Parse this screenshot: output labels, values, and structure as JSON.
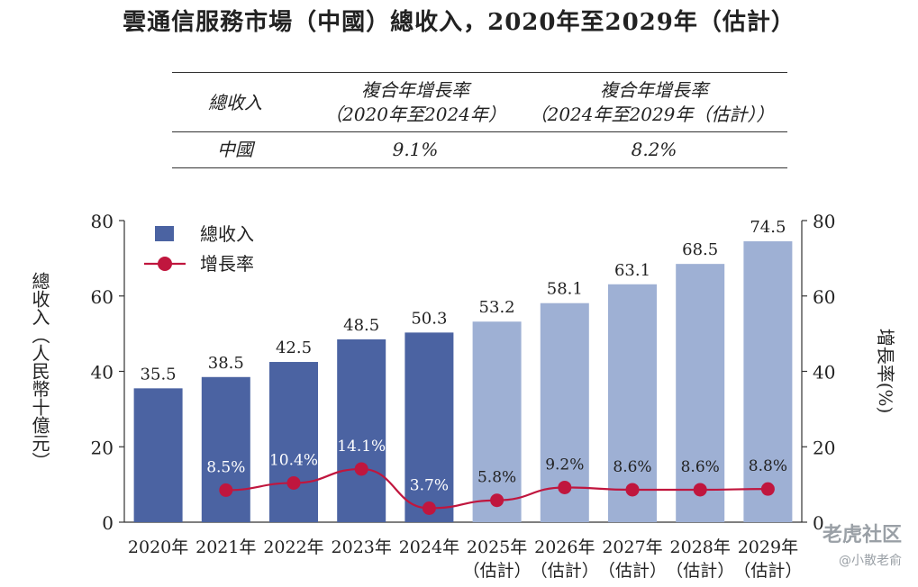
{
  "title": "雲通信服務市場（中國）總收入，2020年至2029年（估計）",
  "cagr_table": {
    "header": {
      "col1": "總收入",
      "col2_line1": "複合年增長率",
      "col2_line2": "（2020年至2024年）",
      "col3_line1": "複合年增長率",
      "col3_line2": "（2024年至2029年（估計））"
    },
    "row": {
      "label": "中國",
      "v1": "9.1%",
      "v2": "8.2%"
    }
  },
  "chart_data": {
    "type": "bar",
    "categories": [
      "2020年",
      "2021年",
      "2022年",
      "2023年",
      "2024年",
      "2025年",
      "2026年",
      "2027年",
      "2028年",
      "2029年"
    ],
    "category_sublabels": [
      "",
      "",
      "",
      "",
      "",
      "（估計）",
      "（估計）",
      "（估計）",
      "（估計）",
      "（估計）"
    ],
    "series": [
      {
        "name": "總收入",
        "kind": "bar",
        "axis": "left",
        "values": [
          35.5,
          38.5,
          42.5,
          48.5,
          50.3,
          53.2,
          58.1,
          63.1,
          68.5,
          74.5
        ],
        "value_labels": [
          "35.5",
          "38.5",
          "42.5",
          "48.5",
          "50.3",
          "53.2",
          "58.1",
          "63.1",
          "68.5",
          "74.5"
        ]
      },
      {
        "name": "增長率",
        "kind": "line",
        "axis": "right",
        "values": [
          null,
          8.5,
          10.4,
          14.1,
          3.7,
          5.8,
          9.2,
          8.6,
          8.6,
          8.8
        ],
        "value_labels": [
          "",
          "8.5%",
          "10.4%",
          "14.1%",
          "3.7%",
          "5.8%",
          "9.2%",
          "8.6%",
          "8.6%",
          "8.8%"
        ]
      }
    ],
    "ylabel": "總收入（人民幣十億元）",
    "y2label": "增長率(%)",
    "ylim": [
      0,
      80
    ],
    "y2lim": [
      0,
      80
    ],
    "yticks": [
      0,
      20,
      40,
      60,
      80
    ],
    "grid": false,
    "legend_position": "top-left",
    "colors": {
      "actual_bar": "#4b63a2",
      "estimate_bar": "#9eb0d4",
      "line": "#c0163e",
      "marker": "#c0163e"
    }
  },
  "watermark": {
    "line1": "老虎社区",
    "line2": "@小散老俞"
  }
}
